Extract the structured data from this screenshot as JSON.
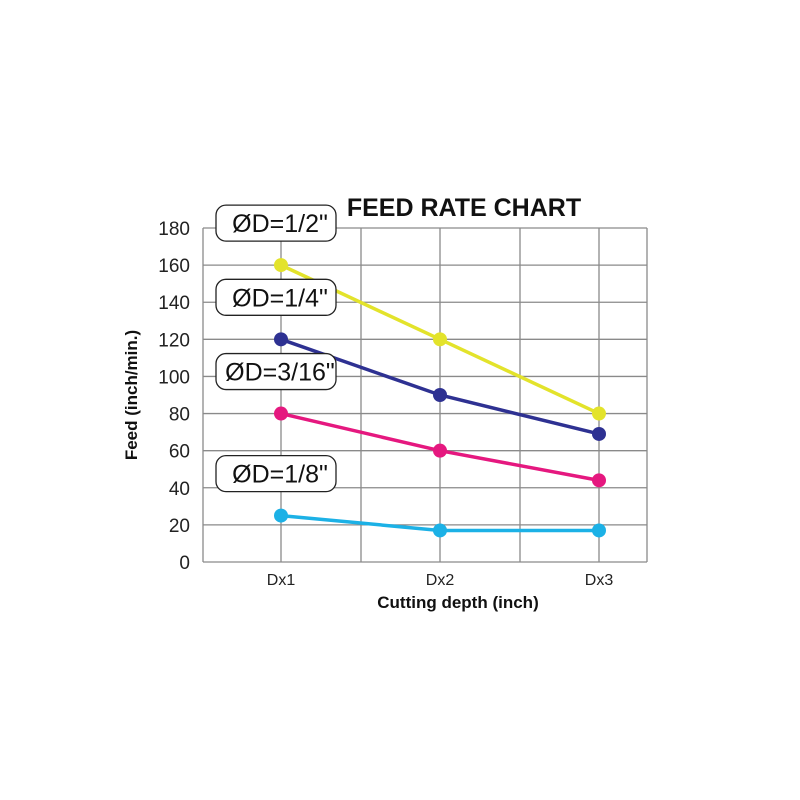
{
  "chart_data": {
    "type": "line",
    "title": "FEED RATE CHART",
    "xlabel": "Cutting depth (inch)",
    "ylabel": "Feed (inch/min.)",
    "categories": [
      "Dx1",
      "Dx2",
      "Dx3"
    ],
    "ylim": [
      0,
      180
    ],
    "yticks": [
      "0",
      "20",
      "40",
      "60",
      "80",
      "100",
      "120",
      "140",
      "160",
      "180"
    ],
    "grid": true,
    "series": [
      {
        "name": "ØD=1/2\"",
        "color": "#e3e32b",
        "values": [
          160,
          120,
          80
        ]
      },
      {
        "name": "ØD=1/4\"",
        "color": "#2e3192",
        "values": [
          120,
          90,
          69
        ]
      },
      {
        "name": "ØD=3/16\"",
        "color": "#e5187f",
        "values": [
          80,
          60,
          44
        ]
      },
      {
        "name": "ØD=1/8\"",
        "color": "#1cb1e6",
        "values": [
          25,
          17,
          17
        ]
      }
    ]
  }
}
